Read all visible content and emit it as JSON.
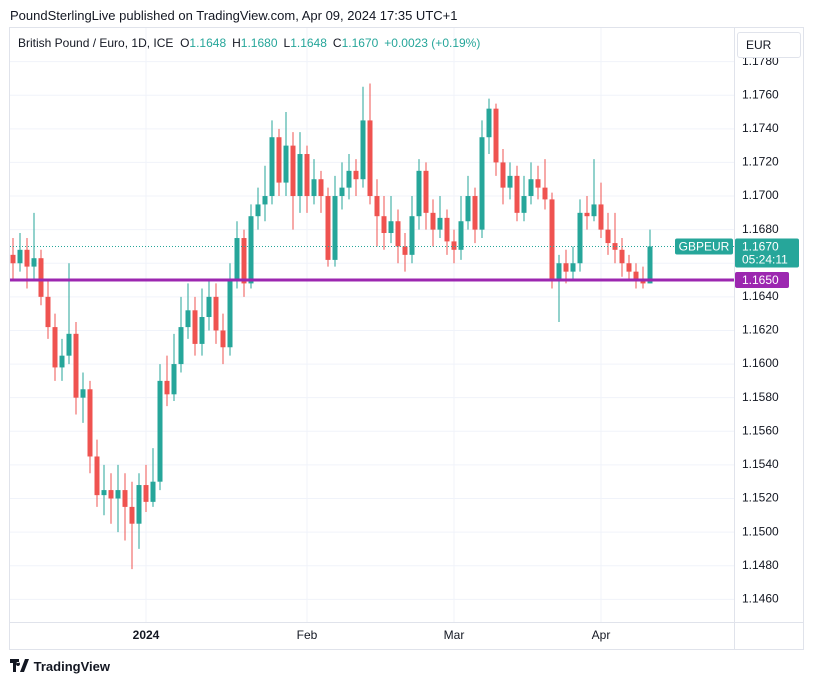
{
  "header": {
    "title": "PoundSterlingLive published on TradingView.com, Apr 09, 2024 17:35 UTC+1"
  },
  "chart_data": {
    "type": "candlestick",
    "legend": {
      "title": "British Pound / Euro, 1D, ICE",
      "fields": [
        {
          "key": "O",
          "value": "1.1648"
        },
        {
          "key": "H",
          "value": "1.1680"
        },
        {
          "key": "L",
          "value": "1.1648"
        },
        {
          "key": "C",
          "value": "1.1670"
        }
      ],
      "change": "+0.0023 (+0.19%)"
    },
    "currency": "EUR",
    "up_color": "#26a69a",
    "down_color": "#ef5350",
    "categories": [
      null,
      null,
      null,
      null,
      null,
      null,
      null,
      null,
      null,
      null,
      null,
      null,
      null,
      null,
      null,
      null,
      null,
      null,
      null,
      "2024",
      null,
      null,
      null,
      null,
      null,
      null,
      null,
      null,
      null,
      null,
      null,
      null,
      null,
      null,
      null,
      null,
      null,
      null,
      null,
      null,
      null,
      null,
      "Feb",
      null,
      null,
      null,
      null,
      null,
      null,
      null,
      null,
      null,
      null,
      null,
      null,
      null,
      null,
      null,
      null,
      null,
      null,
      null,
      null,
      "Mar",
      null,
      null,
      null,
      null,
      null,
      null,
      null,
      null,
      null,
      null,
      null,
      null,
      null,
      null,
      null,
      null,
      null,
      null,
      null,
      null,
      "Apr",
      null,
      null,
      null,
      null,
      null,
      null,
      null
    ],
    "open": [
      1.1665,
      1.166,
      1.1668,
      1.1658,
      1.1663,
      1.164,
      1.1622,
      1.1598,
      1.1605,
      1.1618,
      1.158,
      1.1585,
      1.1545,
      1.1522,
      1.1525,
      1.152,
      1.1525,
      1.1515,
      1.1505,
      1.1528,
      1.1518,
      1.153,
      1.159,
      1.1582,
      1.16,
      1.1622,
      1.1632,
      1.1612,
      1.1628,
      1.164,
      1.162,
      1.161,
      1.165,
      1.1675,
      1.1648,
      1.1688,
      1.1695,
      1.17,
      1.1735,
      1.1708,
      1.173,
      1.17,
      1.1725,
      1.17,
      1.171,
      1.17,
      1.1662,
      1.17,
      1.1705,
      1.1715,
      1.171,
      1.1745,
      1.17,
      1.1688,
      1.1678,
      1.1685,
      1.167,
      1.1665,
      1.1688,
      1.1715,
      1.169,
      1.168,
      1.1687,
      1.1673,
      1.1668,
      1.1685,
      1.17,
      1.168,
      1.1735,
      1.1752,
      1.172,
      1.1705,
      1.1712,
      1.169,
      1.17,
      1.171,
      1.1705,
      1.1698,
      1.165,
      1.166,
      1.1655,
      1.166,
      1.169,
      1.1688,
      1.1695,
      1.168,
      1.1672,
      1.1668,
      1.166,
      1.1655,
      1.165,
      1.1648
    ],
    "high": [
      1.1675,
      1.1678,
      1.1675,
      1.169,
      1.1668,
      1.165,
      1.163,
      1.1615,
      1.166,
      1.1625,
      1.1595,
      1.159,
      1.1555,
      1.154,
      1.1535,
      1.154,
      1.1535,
      1.153,
      1.1535,
      1.154,
      1.155,
      1.16,
      1.1605,
      1.1618,
      1.164,
      1.1648,
      1.164,
      1.1645,
      1.165,
      1.1648,
      1.163,
      1.166,
      1.1685,
      1.168,
      1.1695,
      1.1705,
      1.1718,
      1.1745,
      1.174,
      1.175,
      1.1738,
      1.1738,
      1.173,
      1.1722,
      1.1715,
      1.1705,
      1.1712,
      1.172,
      1.1725,
      1.1722,
      1.1765,
      1.1767,
      1.171,
      1.17,
      1.17,
      1.1692,
      1.1678,
      1.17,
      1.1722,
      1.172,
      1.1698,
      1.17,
      1.1692,
      1.168,
      1.17,
      1.1712,
      1.1705,
      1.1745,
      1.1758,
      1.1755,
      1.1728,
      1.172,
      1.1718,
      1.1712,
      1.172,
      1.1718,
      1.1722,
      1.1702,
      1.1665,
      1.1668,
      1.167,
      1.1698,
      1.17,
      1.1722,
      1.1708,
      1.169,
      1.169,
      1.1675,
      1.1665,
      1.166,
      1.1658,
      1.168
    ],
    "low": [
      1.165,
      1.1655,
      1.1645,
      1.165,
      1.1635,
      1.1615,
      1.159,
      1.159,
      1.16,
      1.157,
      1.1565,
      1.1535,
      1.1515,
      1.151,
      1.1505,
      1.15,
      1.1495,
      1.1478,
      1.149,
      1.1512,
      1.1515,
      1.1525,
      1.1575,
      1.1578,
      1.1595,
      1.1615,
      1.1605,
      1.1605,
      1.162,
      1.1612,
      1.16,
      1.1605,
      1.1645,
      1.164,
      1.1645,
      1.168,
      1.1685,
      1.1695,
      1.17,
      1.17,
      1.168,
      1.169,
      1.169,
      1.1695,
      1.169,
      1.1658,
      1.1658,
      1.1692,
      1.1698,
      1.17,
      1.1705,
      1.1695,
      1.167,
      1.1668,
      1.1672,
      1.166,
      1.1655,
      1.166,
      1.168,
      1.168,
      1.167,
      1.1675,
      1.1665,
      1.166,
      1.1662,
      1.168,
      1.1672,
      1.1675,
      1.1725,
      1.1712,
      1.1695,
      1.1698,
      1.1685,
      1.1685,
      1.1695,
      1.1698,
      1.1692,
      1.1645,
      1.1625,
      1.1648,
      1.165,
      1.1655,
      1.168,
      1.1685,
      1.1675,
      1.1665,
      1.166,
      1.1652,
      1.165,
      1.1645,
      1.1645,
      1.1648
    ],
    "close": [
      1.166,
      1.1668,
      1.1658,
      1.1663,
      1.164,
      1.1622,
      1.1598,
      1.1605,
      1.1618,
      1.158,
      1.1585,
      1.1545,
      1.1522,
      1.1525,
      1.152,
      1.1525,
      1.1515,
      1.1505,
      1.1528,
      1.1518,
      1.153,
      1.159,
      1.1582,
      1.16,
      1.1622,
      1.1632,
      1.1612,
      1.1628,
      1.164,
      1.162,
      1.161,
      1.165,
      1.1675,
      1.1648,
      1.1688,
      1.1695,
      1.17,
      1.1735,
      1.1708,
      1.173,
      1.17,
      1.1725,
      1.17,
      1.171,
      1.17,
      1.1662,
      1.17,
      1.1705,
      1.1715,
      1.171,
      1.1745,
      1.17,
      1.1688,
      1.1678,
      1.1685,
      1.167,
      1.1665,
      1.1688,
      1.1715,
      1.169,
      1.168,
      1.1687,
      1.1673,
      1.1668,
      1.1685,
      1.17,
      1.168,
      1.1735,
      1.1752,
      1.172,
      1.1705,
      1.1712,
      1.169,
      1.17,
      1.171,
      1.1705,
      1.1698,
      1.165,
      1.166,
      1.1655,
      1.166,
      1.169,
      1.1688,
      1.1695,
      1.168,
      1.1672,
      1.1668,
      1.166,
      1.1655,
      1.165,
      1.1648,
      1.167
    ],
    "ylim": [
      1.14465,
      1.18
    ],
    "yticks": [
      {
        "value": 1.146,
        "label": "1.1460"
      },
      {
        "value": 1.148,
        "label": "1.1480"
      },
      {
        "value": 1.15,
        "label": "1.1500"
      },
      {
        "value": 1.152,
        "label": "1.1520"
      },
      {
        "value": 1.154,
        "label": "1.1540"
      },
      {
        "value": 1.156,
        "label": "1.1560"
      },
      {
        "value": 1.158,
        "label": "1.1580"
      },
      {
        "value": 1.16,
        "label": "1.1600"
      },
      {
        "value": 1.162,
        "label": "1.1620"
      },
      {
        "value": 1.164,
        "label": "1.1640"
      },
      {
        "value": 1.166,
        "label": "1.1660"
      },
      {
        "value": 1.168,
        "label": "1.1680"
      },
      {
        "value": 1.17,
        "label": "1.1700"
      },
      {
        "value": 1.172,
        "label": "1.1720"
      },
      {
        "value": 1.174,
        "label": "1.1740"
      },
      {
        "value": 1.176,
        "label": "1.1760"
      },
      {
        "value": 1.178,
        "label": "1.1780"
      }
    ],
    "grid": true,
    "hline": {
      "value": 1.165,
      "label": "1.1650",
      "color": "#9c27b0"
    },
    "last_price": {
      "value": 1.167,
      "label": "1.1670",
      "symbol": "GBPEUR",
      "countdown": "05:24:11",
      "color": "#26a69a"
    }
  },
  "footer": {
    "brand": "TradingView"
  }
}
